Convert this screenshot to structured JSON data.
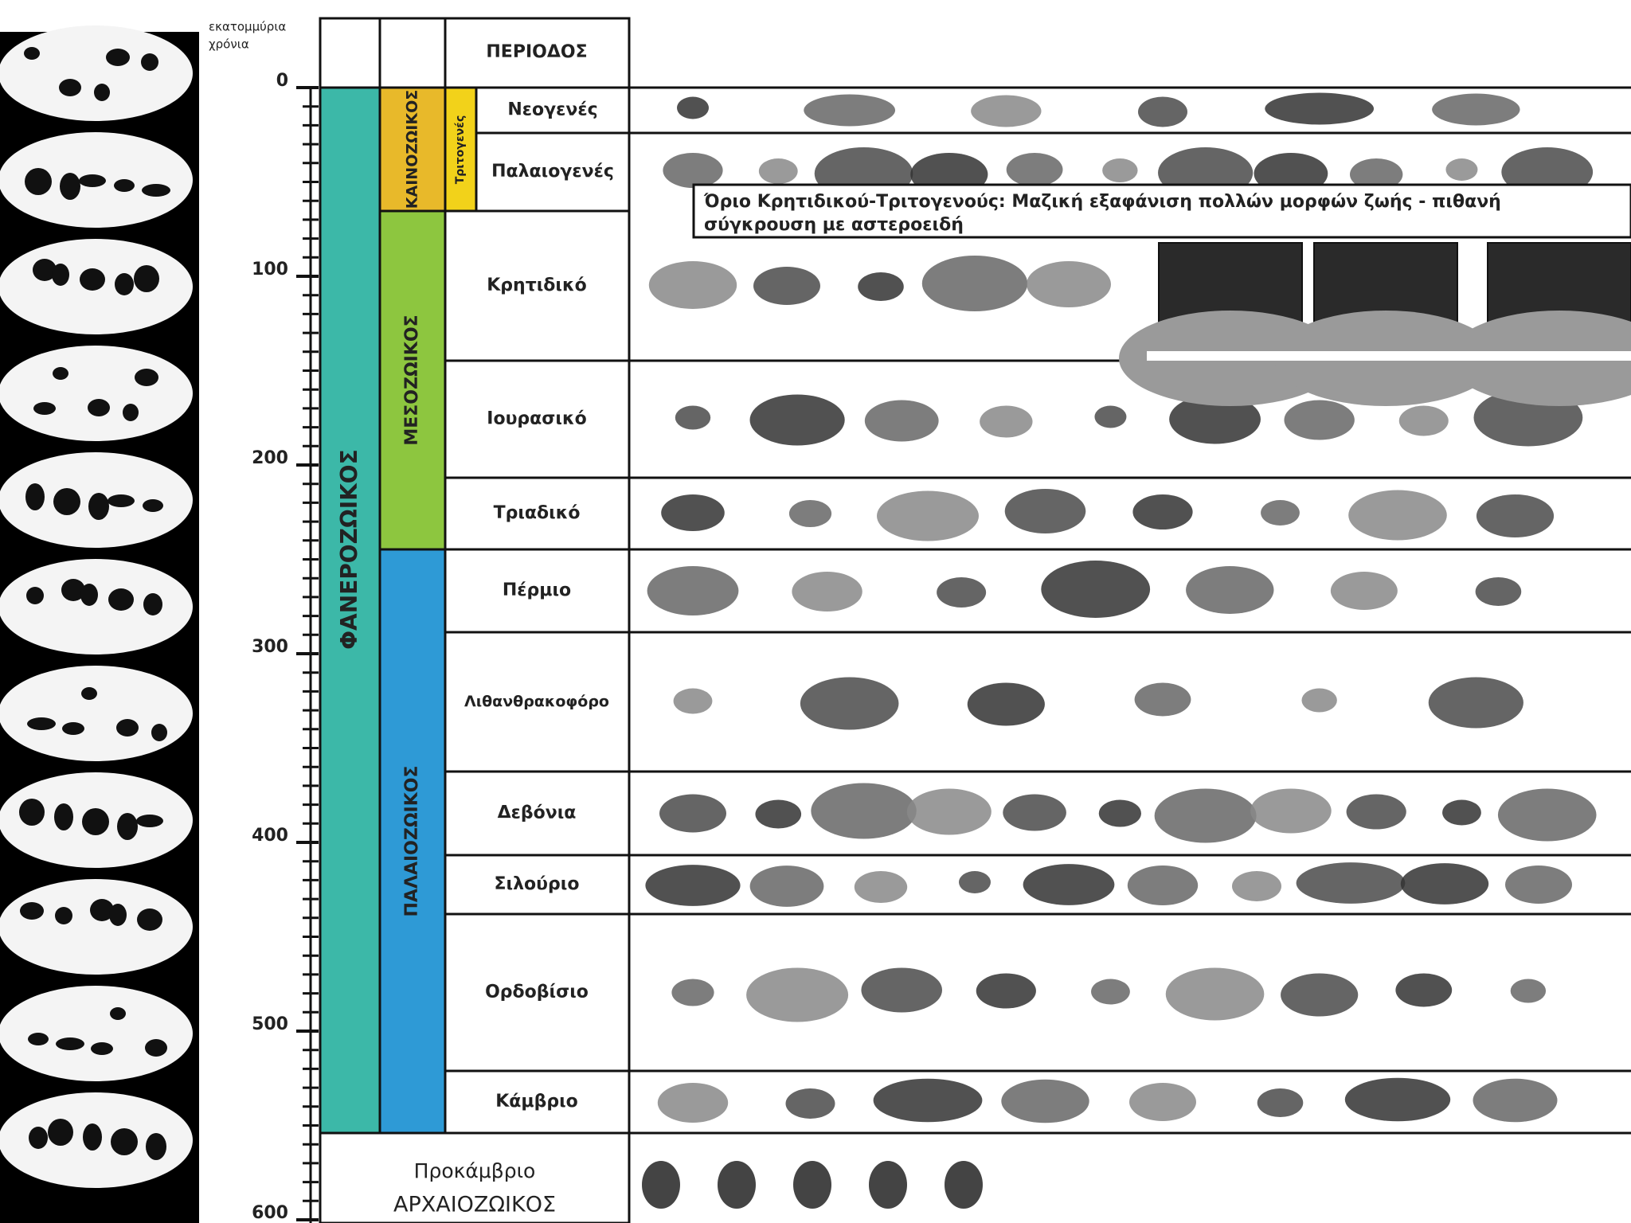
{
  "axis": {
    "label_lines": [
      "εκατομμύρια",
      "χρόνια"
    ],
    "ticks": [
      0,
      100,
      200,
      300,
      400,
      500,
      600
    ]
  },
  "header": {
    "period": "ΠΕΡΙΟΔΟΣ"
  },
  "eon": "ΦΑΝΕΡΟΖΩΙΚΟΣ",
  "eras": [
    "ΚΑΙΝΟΖΩΙΚΟΣ",
    "ΜΕΣΟΖΩΙΚΟΣ",
    "ΠΑΛΑΙΟΖΩΙΚΟΣ"
  ],
  "subera": "Τριτογενές",
  "periods": [
    "Νεογενές",
    "Παλαιογενές",
    "Κρητιδικό",
    "Ιουρασικό",
    "Τριαδικό",
    "Πέρμιο",
    "Λιθανθρακοφόρο",
    "Δεβόνια",
    "Σιλούριο",
    "Ορδοβίσιο",
    "Κάμβριο"
  ],
  "precambrian": {
    "lines": [
      "Προκάμβριο",
      "ΑΡΧΑΙΟΖΩΙΚΟΣ"
    ]
  },
  "annotation": {
    "lines": [
      "Όριο Κρητιδικού-Τριτογενούς: Μαζική εξαφάνιση πολλών μορφών ζωής - πιθανή",
      "σύγκρουση με αστεροειδή"
    ]
  }
}
